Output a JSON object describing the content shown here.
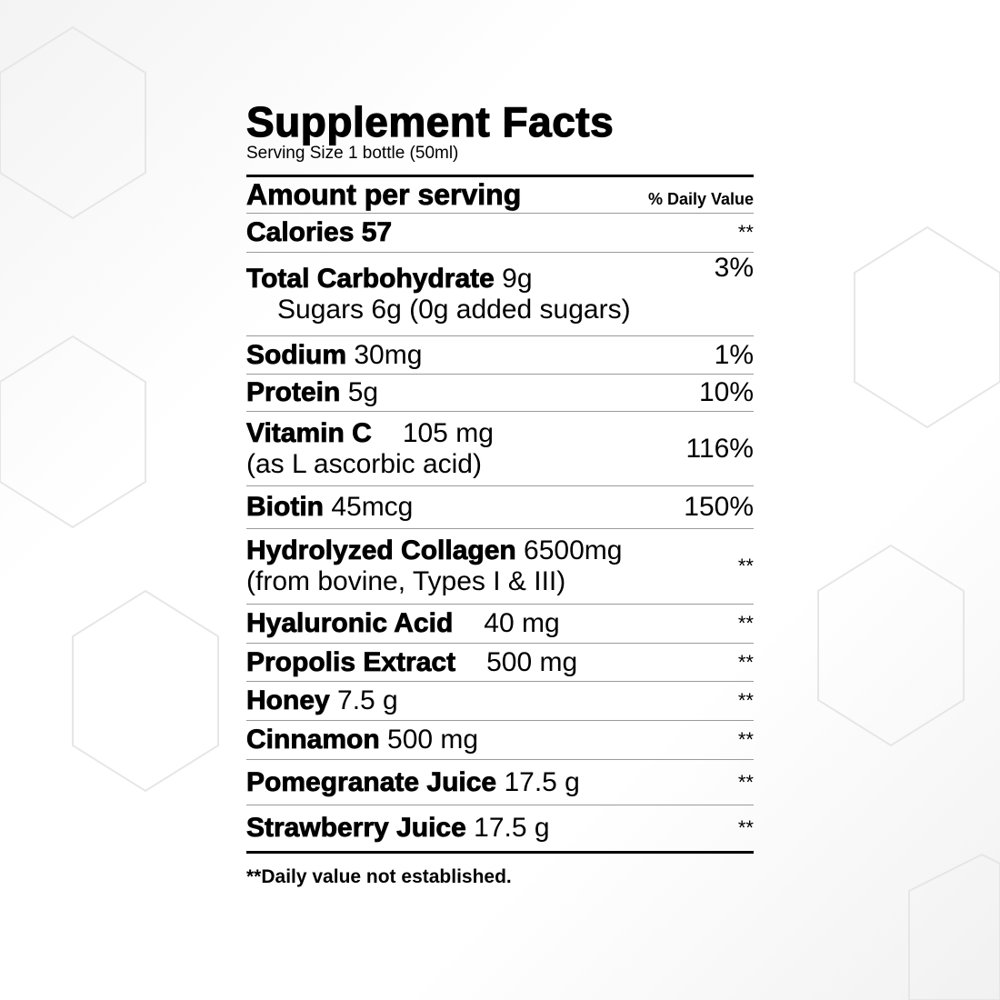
{
  "title": "Supplement Facts",
  "serving_size": "Serving Size 1 bottle (50ml)",
  "header": {
    "amount": "Amount per serving",
    "daily_value": "% Daily Value"
  },
  "calories": {
    "label": "Calories 57",
    "dv": "**"
  },
  "rows": [
    {
      "name": "Total Carbohydrate",
      "amount": " 9g",
      "sub": "Sugars 6g (0g added sugars)",
      "dv": "3%"
    },
    {
      "name": "Sodium",
      "amount": " 30mg",
      "dv": "1%"
    },
    {
      "name": "Protein",
      "amount": " 5g",
      "dv": "10%"
    },
    {
      "name": "Vitamin C",
      "amount": "105 mg",
      "sub": "(as L ascorbic acid)",
      "dv": "116%"
    },
    {
      "name": "Biotin",
      "amount": " 45mcg",
      "dv": "150%"
    },
    {
      "name": "Hydrolyzed Collagen",
      "amount": " 6500mg",
      "sub": "(from bovine, Types I & III)",
      "dv": "**"
    },
    {
      "name": "Hyaluronic Acid",
      "amount": "40 mg",
      "dv": "**"
    },
    {
      "name": "Propolis Extract",
      "amount": "500 mg",
      "dv": "**"
    },
    {
      "name": "Honey",
      "amount": " 7.5 g",
      "dv": "**"
    },
    {
      "name": "Cinnamon",
      "amount": " 500 mg",
      "dv": "**"
    },
    {
      "name": "Pomegranate Juice",
      "amount": " 17.5 g",
      "dv": "**"
    },
    {
      "name": "Strawberry Juice",
      "amount": " 17.5 g",
      "dv": "**"
    }
  ],
  "footnote": "**Daily value not established."
}
